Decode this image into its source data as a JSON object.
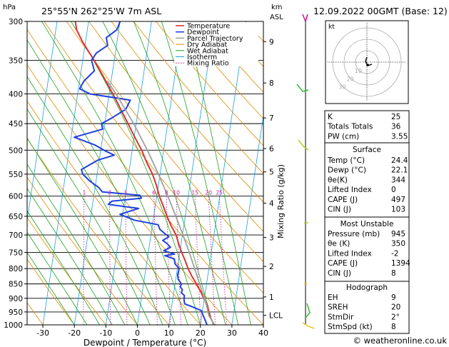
{
  "header": {
    "pressure_unit": "hPa",
    "location": "25°55'N  262°25'W  7m  ASL",
    "km_label": "km",
    "asl_label": "ASL",
    "datetime": "12.09.2022  00GMT  (Base: 12)"
  },
  "chart_data": {
    "type": "line",
    "title": "25°55'N  262°25'W  7m  ASL",
    "xlabel": "Dewpoint / Temperature (°C)",
    "ylabel": "hPa",
    "right_label": "Mixing Ratio (g/kg)",
    "xlim": [
      -35,
      40
    ],
    "ylim": [
      1000,
      300
    ],
    "y_log": true,
    "grid": true,
    "x_ticks": [
      "-30",
      "-20",
      "-10",
      "0",
      "10",
      "20",
      "30",
      "40"
    ],
    "pressure_ticks": [
      "300",
      "350",
      "400",
      "450",
      "500",
      "550",
      "600",
      "650",
      "700",
      "750",
      "800",
      "850",
      "900",
      "950",
      "1000"
    ],
    "height_ticks": [
      {
        "p": 325,
        "label": "9"
      },
      {
        "p": 383,
        "label": "8"
      },
      {
        "p": 440,
        "label": "7"
      },
      {
        "p": 497,
        "label": "6"
      },
      {
        "p": 545,
        "label": "5"
      },
      {
        "p": 617,
        "label": "4"
      },
      {
        "p": 707,
        "label": "3"
      },
      {
        "p": 793,
        "label": "2"
      },
      {
        "p": 895,
        "label": "1"
      },
      {
        "p": 963,
        "label": "LCL"
      }
    ],
    "mixing_ratio_labels": [
      "1",
      "2",
      "3",
      "6",
      "8",
      "10",
      "15",
      "20",
      "25"
    ],
    "legend": [
      "Temperature",
      "Dewpoint",
      "Parcel Trajectory",
      "Dry Adiabat",
      "Wet Adiabat",
      "Isotherm",
      "Mixing Ratio"
    ],
    "series": [
      {
        "name": "Temperature",
        "color": "#e03030",
        "p": [
          1000,
          975,
          950,
          925,
          900,
          875,
          850,
          825,
          800,
          775,
          750,
          725,
          700,
          675,
          650,
          625,
          600,
          575,
          550,
          525,
          500,
          475,
          450,
          425,
          400,
          375,
          350,
          325,
          310,
          300
        ],
        "t": [
          24.4,
          23.0,
          22.0,
          21.3,
          19.8,
          18.4,
          16.8,
          15.0,
          13.4,
          12.1,
          10.6,
          9.2,
          8.0,
          6.0,
          4.2,
          2.6,
          0.8,
          -0.6,
          -2.4,
          -4.8,
          -7.0,
          -9.8,
          -12.6,
          -15.6,
          -18.8,
          -22.4,
          -26.4,
          -31.0,
          -33.4,
          -34.2
        ]
      },
      {
        "name": "Dewpoint",
        "color": "#2040e0",
        "p": [
          1000,
          975,
          955,
          945,
          935,
          920,
          905,
          890,
          880,
          870,
          860,
          850,
          835,
          820,
          800,
          785,
          770,
          760,
          755,
          745,
          735,
          725,
          715,
          705,
          695,
          685,
          672,
          660,
          645,
          630,
          620,
          612,
          605,
          598,
          590,
          580,
          565,
          550,
          540,
          530,
          520,
          510,
          500,
          490,
          475,
          460,
          450,
          440,
          425,
          410,
          400,
          392,
          380,
          365,
          350,
          340,
          330,
          320,
          310,
          300
        ],
        "t": [
          22.1,
          21.0,
          20.0,
          19.6,
          17.5,
          14.0,
          13.6,
          13.5,
          12.4,
          12.6,
          11.8,
          12.0,
          10.8,
          10.4,
          10.6,
          9.0,
          8.6,
          5.4,
          8.4,
          4.8,
          6.8,
          5.6,
          4.0,
          5.8,
          4.2,
          2.6,
          1.8,
          -6.0,
          -10.8,
          -5.2,
          -15.0,
          -14.0,
          -4.8,
          -5.4,
          -17.5,
          -18.8,
          -22.0,
          -24.5,
          -25.2,
          -22.8,
          -20.4,
          -15.5,
          -19.0,
          -22.0,
          -29.0,
          -20.4,
          -21.0,
          -18.0,
          -14.0,
          -13.0,
          -26.0,
          -29.6,
          -28.6,
          -25.8,
          -27.2,
          -26.0,
          -22.8,
          -23.6,
          -20.6,
          -20.0
        ]
      },
      {
        "name": "Parcel Trajectory",
        "color": "#a0a0a0",
        "p": [
          1000,
          963,
          925,
          900,
          850,
          800,
          750,
          700,
          650,
          600,
          550,
          500,
          450,
          400,
          380
        ],
        "t": [
          24.4,
          22.2,
          21.0,
          20.0,
          17.8,
          15.5,
          13.0,
          10.2,
          7.0,
          3.5,
          -0.5,
          -5.2,
          -10.8,
          -17.8,
          -21.2
        ]
      }
    ]
  },
  "hodograph": {
    "label": "kt",
    "ring_labels": [
      "10",
      "20",
      "30"
    ]
  },
  "indices": {
    "top": [
      {
        "label": "K",
        "value": "25"
      },
      {
        "label": "Totals Totals",
        "value": "36"
      },
      {
        "label": "PW (cm)",
        "value": "3.55"
      }
    ],
    "surface": {
      "title": "Surface",
      "rows": [
        {
          "label": "Temp (°C)",
          "value": "24.4"
        },
        {
          "label": "Dewp (°C)",
          "value": "22.1"
        },
        {
          "label": "θe(K)",
          "value": "344"
        },
        {
          "label": "Lifted Index",
          "value": "0"
        },
        {
          "label": "CAPE (J)",
          "value": "497"
        },
        {
          "label": "CIN (J)",
          "value": "103"
        }
      ]
    },
    "unstable": {
      "title": "Most Unstable",
      "rows": [
        {
          "label": "Pressure (mb)",
          "value": "945"
        },
        {
          "label": "θe (K)",
          "value": "350"
        },
        {
          "label": "Lifted Index",
          "value": "-2"
        },
        {
          "label": "CAPE (J)",
          "value": "1394"
        },
        {
          "label": "CIN (J)",
          "value": "8"
        }
      ]
    },
    "hodograph_box": {
      "title": "Hodograph",
      "rows": [
        {
          "label": "EH",
          "value": "9"
        },
        {
          "label": "SREH",
          "value": "20"
        },
        {
          "label": "StmDir",
          "value": "2°"
        },
        {
          "label": "StmSpd (kt)",
          "value": "8"
        }
      ]
    }
  },
  "footer": {
    "copyright": "© weatheronline.co.uk"
  },
  "colors": {
    "temperature": "#e03030",
    "dewpoint": "#2040e0",
    "parcel": "#a0a0a0",
    "dry_adiabat": "#e08a00",
    "wet_adiabat": "#1ea01e",
    "isotherm": "#1aa0e0",
    "mixing_ratio": "#d0108c",
    "wind_barb": "#30c030"
  }
}
